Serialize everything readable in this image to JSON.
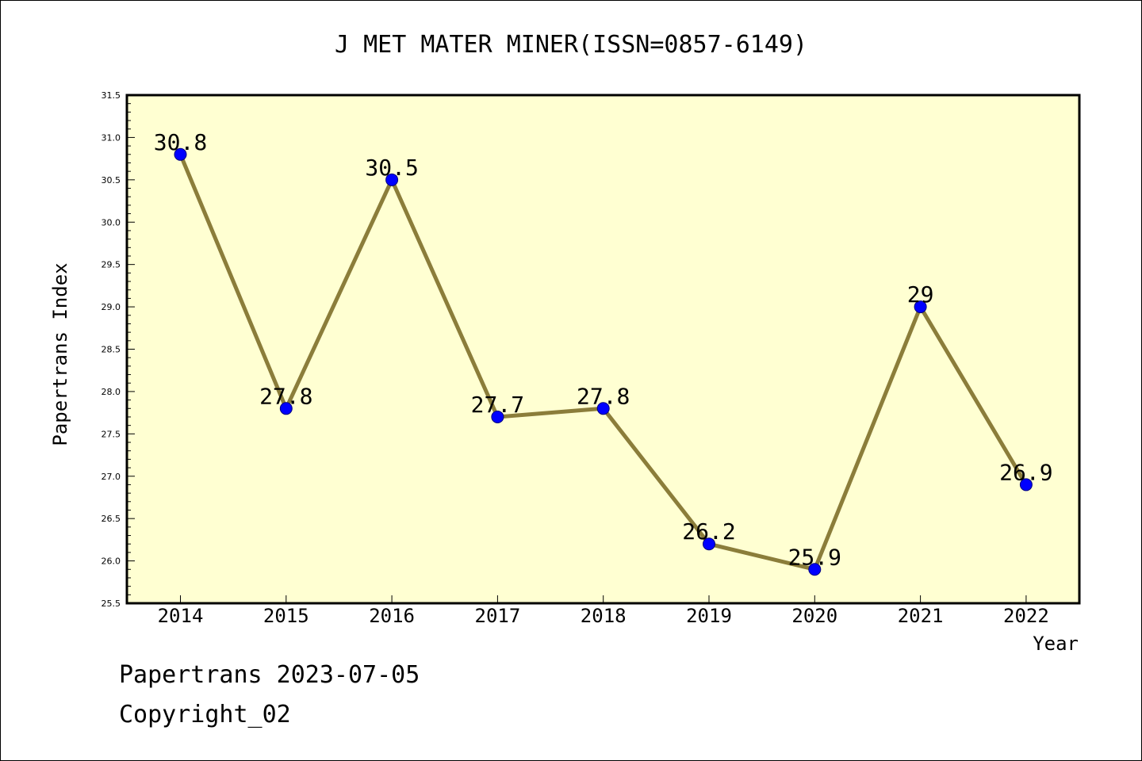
{
  "chart_data": {
    "type": "line",
    "title": "J MET MATER MINER(ISSN=0857-6149)",
    "xlabel": "Year",
    "ylabel": "Papertrans Index",
    "categories": [
      "2014",
      "2015",
      "2016",
      "2017",
      "2018",
      "2019",
      "2020",
      "2021",
      "2022"
    ],
    "values": [
      30.8,
      27.8,
      30.5,
      27.7,
      27.8,
      26.2,
      25.9,
      29,
      26.9
    ],
    "data_labels": [
      "30.8",
      "27.8",
      "30.5",
      "27.7",
      "27.8",
      "26.2",
      "25.9",
      "29",
      "26.9"
    ],
    "ylim": [
      25.5,
      31.5
    ],
    "yticks": [
      "25.5",
      "26.0",
      "26.5",
      "27.0",
      "27.5",
      "28.0",
      "28.5",
      "29.0",
      "29.5",
      "30.0",
      "30.5",
      "31.0",
      "31.5"
    ],
    "grid": false,
    "legend": "none",
    "colors": {
      "plot_background": "#ffffd2",
      "line": "#8b7d3a",
      "marker_fill": "#0000ff",
      "marker_edge": "#000080"
    }
  },
  "footer": {
    "line1": "Papertrans 2023-07-05",
    "line2": "Copyright_02"
  }
}
